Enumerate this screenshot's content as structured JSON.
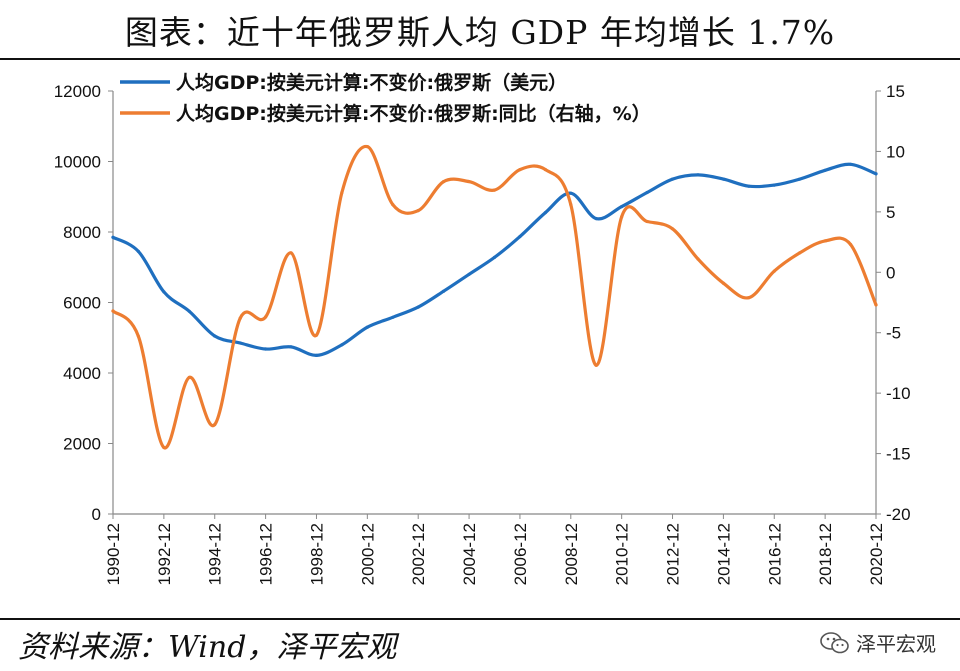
{
  "title": "图表：近十年俄罗斯人均 GDP 年均增长 1.7%",
  "source": "资料来源：Wind，泽平宏观",
  "watermark": "泽平宏观",
  "chart_data": {
    "type": "line",
    "x": [
      "1990-12",
      "1991-12",
      "1992-12",
      "1993-12",
      "1994-12",
      "1995-12",
      "1996-12",
      "1997-12",
      "1998-12",
      "1999-12",
      "2000-12",
      "2001-12",
      "2002-12",
      "2003-12",
      "2004-12",
      "2005-12",
      "2006-12",
      "2007-12",
      "2008-12",
      "2009-12",
      "2010-12",
      "2011-12",
      "2012-12",
      "2013-12",
      "2014-12",
      "2015-12",
      "2016-12",
      "2017-12",
      "2018-12",
      "2019-12",
      "2020-12"
    ],
    "x_tick_labels": [
      "1990-12",
      "1992-12",
      "1994-12",
      "1996-12",
      "1998-12",
      "2000-12",
      "2002-12",
      "2004-12",
      "2006-12",
      "2008-12",
      "2010-12",
      "2012-12",
      "2014-12",
      "2016-12",
      "2018-12",
      "2020-12"
    ],
    "series": [
      {
        "name": "人均GDP:按美元计算:不变价:俄罗斯（美元）",
        "axis": "left",
        "color": "#1f6fbf",
        "values": [
          7850,
          7450,
          6300,
          5750,
          5050,
          4850,
          4680,
          4740,
          4500,
          4800,
          5300,
          5580,
          5870,
          6320,
          6800,
          7280,
          7870,
          8550,
          9100,
          8380,
          8720,
          9120,
          9500,
          9620,
          9500,
          9300,
          9330,
          9500,
          9750,
          9920,
          9650
        ]
      },
      {
        "name": "人均GDP:按美元计算:不变价:俄罗斯:同比（右轴，%）",
        "axis": "right",
        "color": "#ed7d31",
        "values": [
          -3.2,
          -5.3,
          -14.5,
          -8.7,
          -12.6,
          -3.8,
          -3.7,
          1.6,
          -5.2,
          6.6,
          10.4,
          5.6,
          5.1,
          7.5,
          7.5,
          6.8,
          8.5,
          8.5,
          5.6,
          -7.7,
          4.6,
          4.2,
          3.6,
          1.1,
          -0.9,
          -2.1,
          0.1,
          1.6,
          2.6,
          2.3,
          -2.7
        ]
      }
    ],
    "y_left": {
      "ylim": [
        0,
        12000
      ],
      "ticks": [
        "0",
        "2000",
        "4000",
        "6000",
        "8000",
        "10000",
        "12000"
      ]
    },
    "y_right": {
      "ylim": [
        -20,
        15
      ],
      "ticks": [
        "-20",
        "-15",
        "-10",
        "-5",
        "0",
        "5",
        "10",
        "15"
      ]
    },
    "legend_position": "top-left",
    "grid": false
  }
}
